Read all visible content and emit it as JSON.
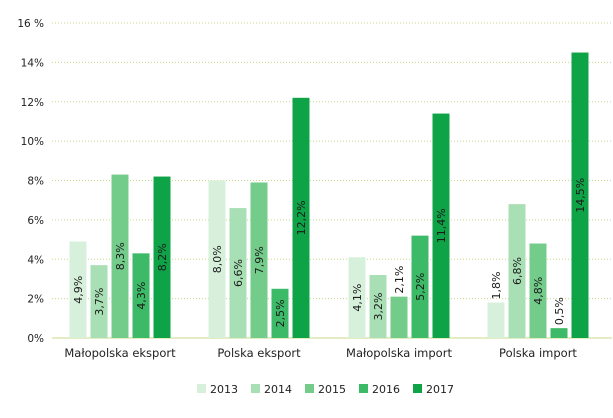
{
  "chart_data": {
    "type": "bar",
    "categories": [
      "Małopolska eksport",
      "Polska eksport",
      "Małopolska import",
      "Polska import"
    ],
    "series": [
      {
        "name": "2013",
        "color": "#d6f0dc",
        "values": [
          4.9,
          8.0,
          4.1,
          1.8
        ],
        "labels": [
          "4,9%",
          "8,0%",
          "4,1%",
          "1,8%"
        ]
      },
      {
        "name": "2014",
        "color": "#a9dfb5",
        "values": [
          3.7,
          6.6,
          3.2,
          6.8
        ],
        "labels": [
          "3,7%",
          "6,6%",
          "3,2%",
          "6,8%"
        ]
      },
      {
        "name": "2015",
        "color": "#74cc8b",
        "values": [
          8.3,
          7.9,
          2.1,
          4.8
        ],
        "labels": [
          "8,3%",
          "7,9%",
          "2,1%",
          "4,8%"
        ]
      },
      {
        "name": "2016",
        "color": "#3dba68",
        "values": [
          4.3,
          2.5,
          5.2,
          0.5
        ],
        "labels": [
          "4,3%",
          "2,5%",
          "5,2%",
          "0,5%"
        ]
      },
      {
        "name": "2017",
        "color": "#0fa348",
        "values": [
          8.2,
          12.2,
          11.4,
          14.5
        ],
        "labels": [
          "8,2%",
          "12,2%",
          "11,4%",
          "14,5%"
        ]
      }
    ],
    "y_ticks": [
      "0%",
      "2%",
      "4%",
      "6%",
      "8%",
      "10%",
      "12%",
      "14%",
      "16 %"
    ],
    "ylim": [
      0,
      16
    ],
    "grid": true,
    "gridline_color": "#c8d88a",
    "legend_position": "bottom"
  }
}
